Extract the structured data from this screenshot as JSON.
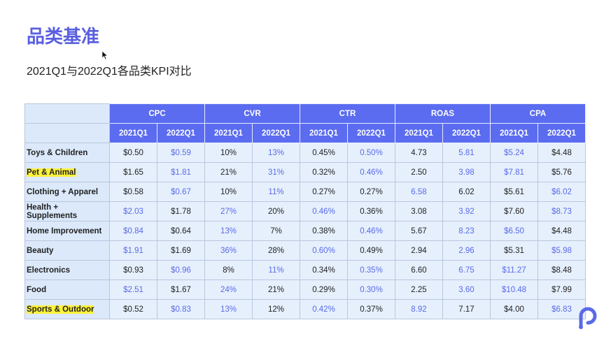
{
  "header": {
    "title": "品类基准",
    "subtitle": "2021Q1与2022Q1各品类KPI对比"
  },
  "table": {
    "groups": [
      "CPC",
      "CVR",
      "CTR",
      "ROAS",
      "CPA"
    ],
    "subheaders": [
      "2021Q1",
      "2022Q1",
      "2021Q1",
      "2022Q1",
      "2021Q1",
      "2022Q1",
      "2021Q1",
      "2022Q1",
      "2021Q1",
      "2022Q1"
    ],
    "rows": [
      {
        "label": "Toys & Children",
        "cells": [
          "$0.50",
          "$0.59",
          "10%",
          "13%",
          "0.45%",
          "0.50%",
          "4.73",
          "5.81",
          "$5.24",
          "$4.48"
        ]
      },
      {
        "label": "Pet & Animal",
        "cells": [
          "$1.65",
          "$1.81",
          "21%",
          "31%",
          "0.32%",
          "0.46%",
          "2.50",
          "3.98",
          "$7.81",
          "$5.76"
        ]
      },
      {
        "label": "Clothing + Apparel",
        "cells": [
          "$0.58",
          "$0.67",
          "10%",
          "11%",
          "0.27%",
          "0.27%",
          "6.58",
          "6.02",
          "$5.61",
          "$6.02"
        ]
      },
      {
        "label": "Health + Supplements",
        "cells": [
          "$2.03",
          "$1.78",
          "27%",
          "20%",
          "0.46%",
          "0.36%",
          "3.08",
          "3.92",
          "$7.60",
          "$8.73"
        ]
      },
      {
        "label": "Home Improvement",
        "cells": [
          "$0.84",
          "$0.64",
          "13%",
          "7%",
          "0.38%",
          "0.46%",
          "5.67",
          "8.23",
          "$6.50",
          "$4.48"
        ]
      },
      {
        "label": "Beauty",
        "cells": [
          "$1.91",
          "$1.69",
          "36%",
          "28%",
          "0.60%",
          "0.49%",
          "2.94",
          "2.96",
          "$5.31",
          "$5.98"
        ]
      },
      {
        "label": "Electronics",
        "cells": [
          "$0.93",
          "$0.96",
          "8%",
          "11%",
          "0.34%",
          "0.35%",
          "6.60",
          "6.75",
          "$11.27",
          "$8.48"
        ]
      },
      {
        "label": "Food",
        "cells": [
          "$2.51",
          "$1.67",
          "24%",
          "21%",
          "0.29%",
          "0.30%",
          "2.25",
          "3.60",
          "$10.48",
          "$7.99"
        ]
      },
      {
        "label": "Sports & Outdoor",
        "cells": [
          "$0.52",
          "$0.83",
          "13%",
          "12%",
          "0.42%",
          "0.37%",
          "8.92",
          "7.17",
          "$4.00",
          "$6.83"
        ]
      }
    ]
  }
}
